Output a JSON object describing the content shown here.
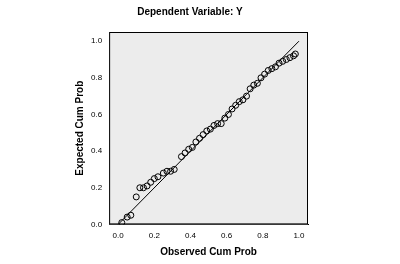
{
  "chart_data": {
    "type": "scatter",
    "title": "Dependent Variable: Y",
    "x_label": "Observed Cum Prob",
    "y_label": "Expected Cum Prob",
    "xlim": [
      -0.05,
      1.05
    ],
    "ylim": [
      0,
      1.05
    ],
    "xticks": [
      {
        "value": 0,
        "label": "0.0"
      },
      {
        "value": 0.2,
        "label": "0.2"
      },
      {
        "value": 0.4,
        "label": "0.4"
      },
      {
        "value": 0.6,
        "label": "0.6"
      },
      {
        "value": 0.8,
        "label": "0.8"
      },
      {
        "value": 1,
        "label": "1.0"
      }
    ],
    "yticks": [
      {
        "value": 0,
        "label": "0.0"
      },
      {
        "value": 0.2,
        "label": "0.2"
      },
      {
        "value": 0.4,
        "label": "0.4"
      },
      {
        "value": 0.6,
        "label": "0.6"
      },
      {
        "value": 0.8,
        "label": "0.8"
      },
      {
        "value": 1,
        "label": "1.0"
      }
    ],
    "grid": false,
    "series": [
      {
        "type": "line",
        "color": "#000000",
        "line_style": "solid",
        "x": [
          0,
          1
        ],
        "values": [
          0,
          1
        ]
      },
      {
        "type": "scatter",
        "color": "#000000",
        "marker": "circle",
        "x": [
          0.02,
          0.05,
          0.07,
          0.1,
          0.12,
          0.14,
          0.16,
          0.18,
          0.2,
          0.22,
          0.25,
          0.27,
          0.29,
          0.31,
          0.35,
          0.37,
          0.39,
          0.41,
          0.43,
          0.45,
          0.47,
          0.49,
          0.51,
          0.53,
          0.55,
          0.57,
          0.59,
          0.61,
          0.63,
          0.65,
          0.67,
          0.69,
          0.71,
          0.73,
          0.75,
          0.77,
          0.79,
          0.81,
          0.83,
          0.85,
          0.87,
          0.89,
          0.91,
          0.93,
          0.95,
          0.97,
          0.98
        ],
        "values": [
          0.01,
          0.04,
          0.05,
          0.15,
          0.2,
          0.2,
          0.21,
          0.23,
          0.25,
          0.26,
          0.28,
          0.29,
          0.29,
          0.3,
          0.37,
          0.39,
          0.41,
          0.42,
          0.45,
          0.47,
          0.49,
          0.51,
          0.52,
          0.54,
          0.55,
          0.55,
          0.58,
          0.6,
          0.63,
          0.65,
          0.67,
          0.68,
          0.7,
          0.74,
          0.76,
          0.77,
          0.8,
          0.82,
          0.84,
          0.85,
          0.86,
          0.88,
          0.89,
          0.9,
          0.91,
          0.92,
          0.93
        ]
      }
    ]
  }
}
